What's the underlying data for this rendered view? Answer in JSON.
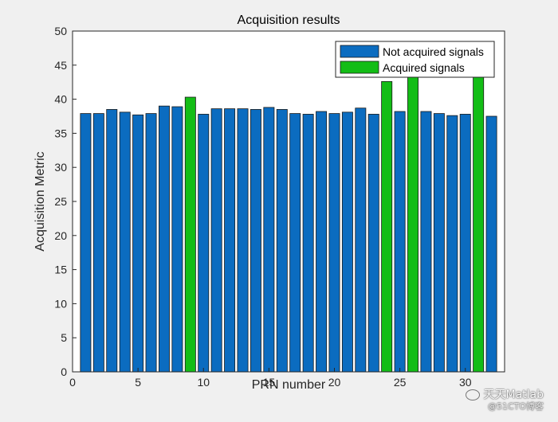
{
  "chart_data": {
    "type": "bar",
    "title": "Acquisition results",
    "xlabel": "PRN number",
    "ylabel": "Acquisition Metric",
    "xlim": [
      0,
      33
    ],
    "ylim": [
      0,
      50
    ],
    "xticks": [
      0,
      5,
      10,
      15,
      20,
      25,
      30
    ],
    "yticks": [
      0,
      5,
      10,
      15,
      20,
      25,
      30,
      35,
      40,
      45,
      50
    ],
    "grid": false,
    "legend_position": "top-right",
    "categories": [
      1,
      2,
      3,
      4,
      5,
      6,
      7,
      8,
      9,
      10,
      11,
      12,
      13,
      14,
      15,
      16,
      17,
      18,
      19,
      20,
      21,
      22,
      23,
      24,
      25,
      26,
      27,
      28,
      29,
      30,
      31,
      32
    ],
    "series": [
      {
        "name": "Not acquired signals",
        "color": "#0b6cc0",
        "values": [
          37.9,
          37.9,
          38.5,
          38.1,
          37.7,
          37.9,
          39.0,
          38.9,
          null,
          37.8,
          38.6,
          38.6,
          38.6,
          38.5,
          38.8,
          38.5,
          37.9,
          37.8,
          38.2,
          37.9,
          38.1,
          38.7,
          37.8,
          null,
          38.2,
          null,
          38.2,
          37.9,
          37.6,
          37.8,
          null,
          37.5
        ]
      },
      {
        "name": "Acquired signals",
        "color": "#13bd16",
        "values": [
          null,
          null,
          null,
          null,
          null,
          null,
          null,
          null,
          40.3,
          null,
          null,
          null,
          null,
          null,
          null,
          null,
          null,
          null,
          null,
          null,
          null,
          null,
          null,
          42.6,
          null,
          43.6,
          null,
          null,
          null,
          null,
          43.5,
          null
        ]
      }
    ]
  },
  "watermark": {
    "line1": "天天Matlab",
    "line2": "@51CTO博客"
  }
}
